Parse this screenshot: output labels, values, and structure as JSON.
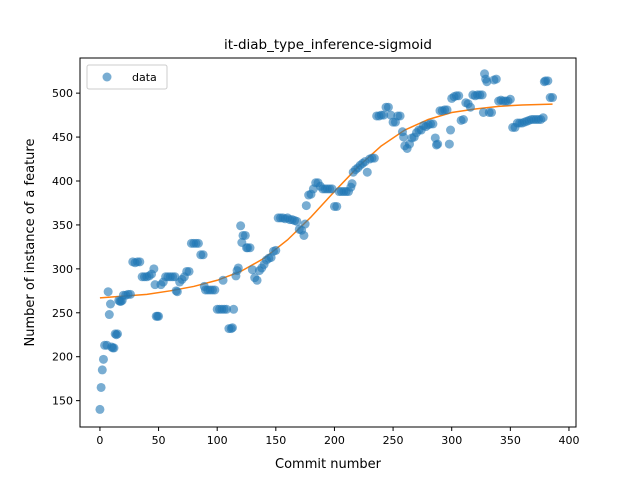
{
  "chart_data": {
    "type": "scatter",
    "title": "it-diab_type_inference-sigmoid",
    "xlabel": "Commit number",
    "ylabel": "Number of instance of a feature",
    "xlim": [
      -17,
      406
    ],
    "ylim": [
      120,
      540
    ],
    "xticks": [
      0,
      50,
      100,
      150,
      200,
      250,
      300,
      350,
      400
    ],
    "yticks": [
      150,
      200,
      250,
      300,
      350,
      400,
      450,
      500
    ],
    "grid": false,
    "legend": {
      "position": "top-left",
      "entries": [
        "data"
      ]
    },
    "colors": {
      "data": "#1f77b4",
      "fit": "#ff7f0e"
    },
    "series": [
      {
        "name": "data",
        "kind": "scatter",
        "points": [
          [
            0,
            140
          ],
          [
            1,
            165
          ],
          [
            2,
            185
          ],
          [
            3,
            197
          ],
          [
            4,
            213
          ],
          [
            6,
            213
          ],
          [
            7,
            274
          ],
          [
            8,
            248
          ],
          [
            9,
            260
          ],
          [
            10,
            211
          ],
          [
            11,
            210
          ],
          [
            12,
            210
          ],
          [
            13,
            226
          ],
          [
            14,
            225
          ],
          [
            15,
            226
          ],
          [
            16,
            264
          ],
          [
            17,
            263
          ],
          [
            18,
            263
          ],
          [
            19,
            264
          ],
          [
            20,
            270
          ],
          [
            22,
            270
          ],
          [
            24,
            271
          ],
          [
            26,
            271
          ],
          [
            28,
            308
          ],
          [
            30,
            307
          ],
          [
            32,
            308
          ],
          [
            34,
            308
          ],
          [
            36,
            291
          ],
          [
            38,
            291
          ],
          [
            40,
            291
          ],
          [
            42,
            292
          ],
          [
            44,
            294
          ],
          [
            46,
            300
          ],
          [
            47,
            282
          ],
          [
            48,
            246
          ],
          [
            49,
            246
          ],
          [
            50,
            246
          ],
          [
            52,
            282
          ],
          [
            54,
            285
          ],
          [
            56,
            291
          ],
          [
            58,
            291
          ],
          [
            60,
            291
          ],
          [
            62,
            291
          ],
          [
            64,
            291
          ],
          [
            65,
            275
          ],
          [
            66,
            274
          ],
          [
            68,
            285
          ],
          [
            70,
            288
          ],
          [
            72,
            291
          ],
          [
            74,
            297
          ],
          [
            76,
            297
          ],
          [
            78,
            329
          ],
          [
            80,
            329
          ],
          [
            82,
            329
          ],
          [
            84,
            329
          ],
          [
            86,
            316
          ],
          [
            88,
            316
          ],
          [
            89,
            280
          ],
          [
            90,
            276
          ],
          [
            92,
            276
          ],
          [
            94,
            276
          ],
          [
            96,
            276
          ],
          [
            98,
            276
          ],
          [
            100,
            254
          ],
          [
            102,
            254
          ],
          [
            104,
            254
          ],
          [
            105,
            287
          ],
          [
            106,
            254
          ],
          [
            108,
            254
          ],
          [
            110,
            232
          ],
          [
            112,
            232
          ],
          [
            113,
            233
          ],
          [
            114,
            254
          ],
          [
            116,
            292
          ],
          [
            117,
            298
          ],
          [
            118,
            301
          ],
          [
            120,
            349
          ],
          [
            121,
            330
          ],
          [
            122,
            338
          ],
          [
            124,
            338
          ],
          [
            125,
            324
          ],
          [
            126,
            324
          ],
          [
            128,
            324
          ],
          [
            130,
            299
          ],
          [
            132,
            290
          ],
          [
            134,
            287
          ],
          [
            136,
            298
          ],
          [
            138,
            301
          ],
          [
            140,
            305
          ],
          [
            142,
            310
          ],
          [
            144,
            312
          ],
          [
            146,
            313
          ],
          [
            148,
            320
          ],
          [
            150,
            321
          ],
          [
            152,
            358
          ],
          [
            154,
            358
          ],
          [
            156,
            358
          ],
          [
            158,
            357
          ],
          [
            160,
            358
          ],
          [
            162,
            356
          ],
          [
            164,
            356
          ],
          [
            166,
            355
          ],
          [
            168,
            354
          ],
          [
            170,
            345
          ],
          [
            172,
            344
          ],
          [
            174,
            338
          ],
          [
            175,
            351
          ],
          [
            176,
            372
          ],
          [
            178,
            384
          ],
          [
            180,
            385
          ],
          [
            182,
            391
          ],
          [
            184,
            398
          ],
          [
            186,
            398
          ],
          [
            188,
            394
          ],
          [
            190,
            391
          ],
          [
            192,
            391
          ],
          [
            194,
            391
          ],
          [
            196,
            391
          ],
          [
            198,
            391
          ],
          [
            200,
            371
          ],
          [
            202,
            371
          ],
          [
            204,
            388
          ],
          [
            206,
            388
          ],
          [
            208,
            388
          ],
          [
            210,
            388
          ],
          [
            212,
            388
          ],
          [
            214,
            393
          ],
          [
            215,
            397
          ],
          [
            216,
            410
          ],
          [
            218,
            413
          ],
          [
            220,
            415
          ],
          [
            222,
            418
          ],
          [
            224,
            420
          ],
          [
            226,
            422
          ],
          [
            228,
            410
          ],
          [
            230,
            425
          ],
          [
            232,
            426
          ],
          [
            234,
            426
          ],
          [
            236,
            474
          ],
          [
            238,
            474
          ],
          [
            240,
            475
          ],
          [
            242,
            475
          ],
          [
            244,
            484
          ],
          [
            246,
            484
          ],
          [
            248,
            475
          ],
          [
            250,
            467
          ],
          [
            252,
            467
          ],
          [
            254,
            474
          ],
          [
            256,
            474
          ],
          [
            258,
            456
          ],
          [
            259,
            450
          ],
          [
            260,
            440
          ],
          [
            262,
            437
          ],
          [
            264,
            442
          ],
          [
            266,
            449
          ],
          [
            268,
            450
          ],
          [
            270,
            455
          ],
          [
            272,
            458
          ],
          [
            274,
            458
          ],
          [
            276,
            463
          ],
          [
            278,
            462
          ],
          [
            280,
            464
          ],
          [
            282,
            465
          ],
          [
            284,
            465
          ],
          [
            286,
            449
          ],
          [
            287,
            441
          ],
          [
            288,
            442
          ],
          [
            290,
            480
          ],
          [
            292,
            480
          ],
          [
            294,
            481
          ],
          [
            296,
            481
          ],
          [
            298,
            442
          ],
          [
            299,
            458
          ],
          [
            300,
            494
          ],
          [
            302,
            496
          ],
          [
            304,
            497
          ],
          [
            306,
            497
          ],
          [
            308,
            469
          ],
          [
            310,
            470
          ],
          [
            312,
            489
          ],
          [
            314,
            488
          ],
          [
            316,
            484
          ],
          [
            318,
            498
          ],
          [
            320,
            497
          ],
          [
            322,
            498
          ],
          [
            324,
            498
          ],
          [
            326,
            498
          ],
          [
            327,
            478
          ],
          [
            328,
            522
          ],
          [
            329,
            516
          ],
          [
            330,
            513
          ],
          [
            332,
            478
          ],
          [
            334,
            478
          ],
          [
            336,
            515
          ],
          [
            338,
            516
          ],
          [
            340,
            491
          ],
          [
            342,
            492
          ],
          [
            344,
            491
          ],
          [
            346,
            491
          ],
          [
            348,
            491
          ],
          [
            350,
            493
          ],
          [
            352,
            461
          ],
          [
            354,
            461
          ],
          [
            356,
            466
          ],
          [
            358,
            466
          ],
          [
            360,
            466
          ],
          [
            362,
            467
          ],
          [
            364,
            468
          ],
          [
            366,
            469
          ],
          [
            368,
            470
          ],
          [
            370,
            470
          ],
          [
            372,
            470
          ],
          [
            374,
            470
          ],
          [
            376,
            470
          ],
          [
            378,
            472
          ],
          [
            379,
            513
          ],
          [
            380,
            514
          ],
          [
            382,
            514
          ],
          [
            384,
            495
          ],
          [
            386,
            495
          ]
        ]
      },
      {
        "name": "",
        "kind": "line",
        "points": [
          [
            0,
            267
          ],
          [
            20,
            269
          ],
          [
            40,
            271
          ],
          [
            60,
            275
          ],
          [
            80,
            280
          ],
          [
            100,
            287
          ],
          [
            120,
            297
          ],
          [
            140,
            312
          ],
          [
            160,
            333
          ],
          [
            180,
            359
          ],
          [
            200,
            388
          ],
          [
            220,
            416
          ],
          [
            240,
            440
          ],
          [
            260,
            458
          ],
          [
            280,
            470
          ],
          [
            300,
            478
          ],
          [
            320,
            482
          ],
          [
            340,
            485
          ],
          [
            360,
            486.5
          ],
          [
            386,
            487.5
          ]
        ]
      }
    ]
  }
}
